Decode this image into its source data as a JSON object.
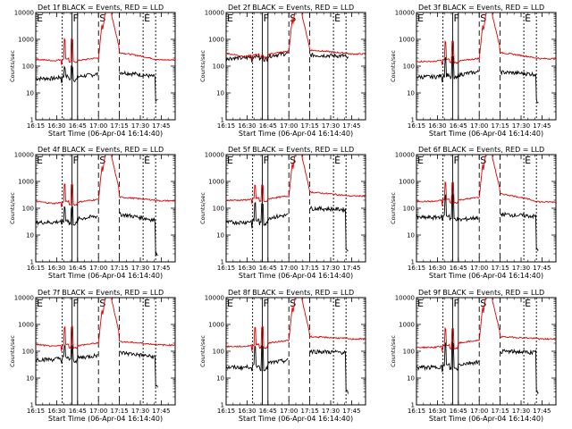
{
  "chart_data": {
    "type": "line",
    "layout": "3x3 grid",
    "x_tick_labels": [
      "16:15",
      "16:30",
      "16:45",
      "17:00",
      "17:15",
      "17:30",
      "17:45"
    ],
    "y_tick_labels": [
      "1",
      "10",
      "100",
      "1000",
      "10000"
    ],
    "y_scale": "log",
    "ylim": [
      1,
      10000
    ],
    "xlim_minutes": [
      0,
      100
    ],
    "xlabel": "Start Time (06-Apr-04 16:14:40)",
    "ylabel": "Counts/sec",
    "series_colors": {
      "events": "#000000",
      "lld": "#e00000"
    },
    "interval_markers": [
      {
        "label": "E",
        "start": 0,
        "end": 19
      },
      {
        "label": "F",
        "start": 26,
        "end": 30
      },
      {
        "label": "S",
        "start": 45,
        "end": 60
      },
      {
        "label": "E",
        "start": 77,
        "end": 86
      }
    ],
    "panels": [
      {
        "title": "Det 1f BLACK = Events, RED = LLD",
        "events": {
          "base": 35,
          "spike": 100,
          "pre": 50,
          "post": 60,
          "post_end": 40,
          "end_drop": 5
        },
        "lld": {
          "base": 160,
          "spike": 1000,
          "pre": 200,
          "peak": 10000,
          "post": 320,
          "post_end": 180,
          "start": 180
        }
      },
      {
        "title": "Det 2f BLACK = Events, RED = LLD",
        "events": {
          "base": 200,
          "spike": 250,
          "pre": 300,
          "post": 260,
          "post_end": 240,
          "end_drop": 200
        },
        "lld": {
          "base": 230,
          "spike": 260,
          "pre": 350,
          "peak": 10000,
          "post": 400,
          "post_end": 300,
          "start": 300
        }
      },
      {
        "title": "Det 3f BLACK = Events, RED = LLD",
        "events": {
          "base": 40,
          "spike": 200,
          "pre": 60,
          "post": 60,
          "post_end": 50,
          "end_drop": 5
        },
        "lld": {
          "base": 150,
          "spike": 800,
          "pre": 190,
          "peak": 10000,
          "post": 320,
          "post_end": 200,
          "start": 150
        }
      },
      {
        "title": "Det 4f BLACK = Events, RED = LLD",
        "events": {
          "base": 30,
          "spike": 100,
          "pre": 50,
          "post": 60,
          "post_end": 35,
          "end_drop": 2
        },
        "lld": {
          "base": 150,
          "spike": 800,
          "pre": 210,
          "peak": 10000,
          "post": 260,
          "post_end": 200,
          "start": 180
        }
      },
      {
        "title": "Det 5f BLACK = Events, RED = LLD",
        "events": {
          "base": 30,
          "spike": 150,
          "pre": 55,
          "post": 100,
          "post_end": 90,
          "end_drop": 3
        },
        "lld": {
          "base": 200,
          "spike": 700,
          "pre": 280,
          "peak": 10000,
          "post": 400,
          "post_end": 300,
          "start": 200
        }
      },
      {
        "title": "Det 6f BLACK = Events, RED = LLD",
        "events": {
          "base": 45,
          "spike": 300,
          "pre": 45,
          "post": 60,
          "post_end": 50,
          "end_drop": 3
        },
        "lld": {
          "base": 180,
          "spike": 900,
          "pre": 250,
          "peak": 10000,
          "post": 350,
          "post_end": 180,
          "start": 180
        }
      },
      {
        "title": "Det 7f BLACK = Events, RED = LLD",
        "events": {
          "base": 50,
          "spike": 150,
          "pre": 70,
          "post": 90,
          "post_end": 60,
          "end_drop": 5
        },
        "lld": {
          "base": 150,
          "spike": 800,
          "pre": 200,
          "peak": 10000,
          "post": 230,
          "post_end": 180,
          "start": 180
        }
      },
      {
        "title": "Det 8f BLACK = Events, RED = LLD",
        "events": {
          "base": 25,
          "spike": 150,
          "pre": 45,
          "post": 100,
          "post_end": 90,
          "end_drop": 3
        },
        "lld": {
          "base": 150,
          "spike": 800,
          "pre": 250,
          "peak": 10000,
          "post": 350,
          "post_end": 300,
          "start": 150
        }
      },
      {
        "title": "Det 9f BLACK = Events, RED = LLD",
        "events": {
          "base": 25,
          "spike": 200,
          "pre": 40,
          "post": 100,
          "post_end": 90,
          "end_drop": 3
        },
        "lld": {
          "base": 140,
          "spike": 700,
          "pre": 250,
          "peak": 10000,
          "post": 350,
          "post_end": 300,
          "start": 140
        }
      }
    ]
  }
}
